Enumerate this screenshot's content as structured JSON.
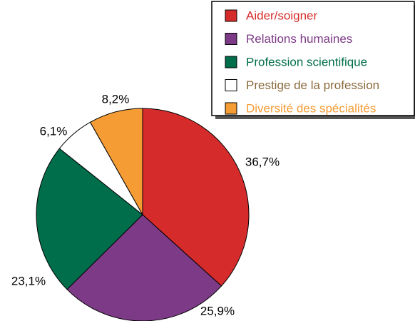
{
  "chart_data": {
    "type": "pie",
    "categories": [
      "Aider/soigner",
      "Relations humaines",
      "Profession scientifique",
      "Prestige de la profession",
      "Diversité des spécialités"
    ],
    "values": [
      36.7,
      25.9,
      23.1,
      6.1,
      8.2
    ],
    "value_labels": [
      "36,7%",
      "25,9%",
      "23,1%",
      "6,1%",
      "8,2%"
    ],
    "colors": [
      "#d62b2b",
      "#7d3a86",
      "#006e4a",
      "#ffffff",
      "#f59c34"
    ],
    "legend_text_colors": [
      "#d62b2b",
      "#7d3a86",
      "#006e4a",
      "#8a6a3c",
      "#f59c34"
    ],
    "legend": "upper right"
  }
}
